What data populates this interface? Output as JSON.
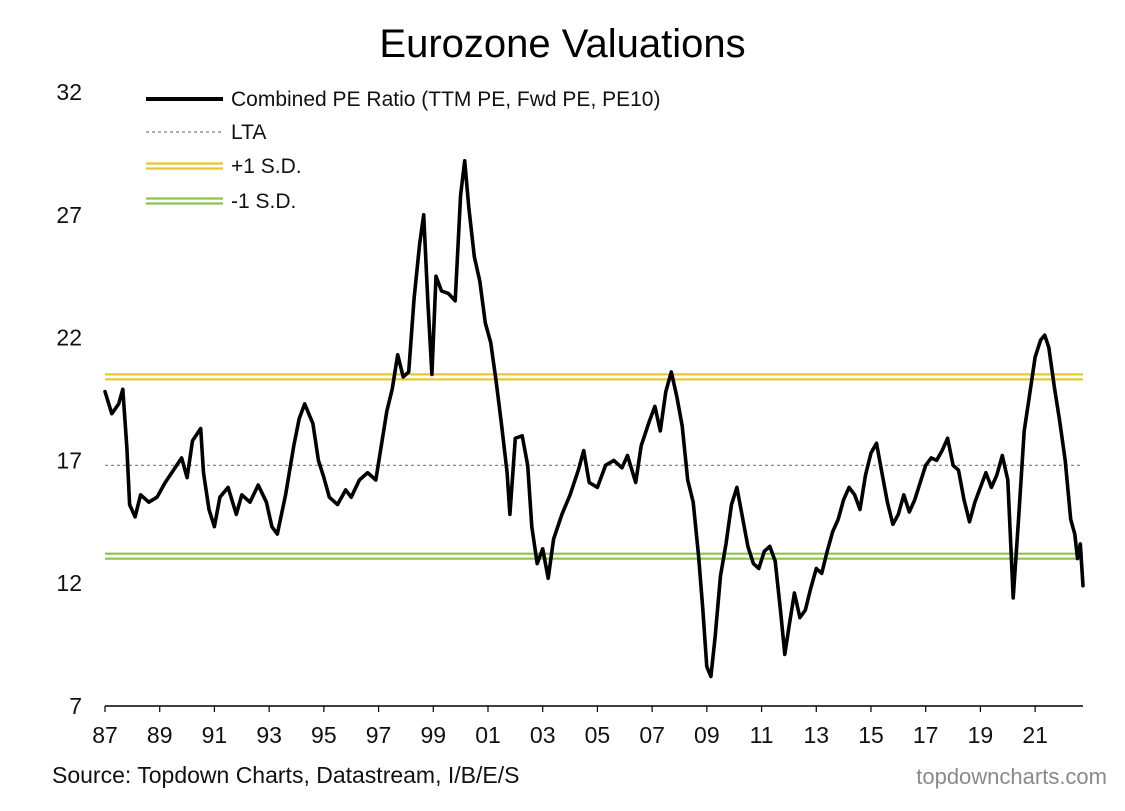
{
  "chart_data": {
    "type": "line",
    "title": "Eurozone Valuations",
    "xlabel": "",
    "ylabel": "",
    "ylim": [
      7,
      32
    ],
    "yticks": [
      7,
      12,
      17,
      22,
      27,
      32
    ],
    "xlim": [
      1987,
      2022.75
    ],
    "xticks": [
      "87",
      "89",
      "91",
      "93",
      "95",
      "97",
      "99",
      "01",
      "03",
      "05",
      "07",
      "09",
      "11",
      "13",
      "15",
      "17",
      "19",
      "21"
    ],
    "grid": false,
    "legend_position": "top-left",
    "legend": [
      {
        "label": "Combined PE Ratio (TTM PE, Fwd PE, PE10)",
        "style": "solid-black-thick"
      },
      {
        "label": "LTA",
        "style": "dashed-gray"
      },
      {
        "label": "+1 S.D.",
        "style": "double-yellow"
      },
      {
        "label": "-1 S.D.",
        "style": "double-green"
      }
    ],
    "reference_lines": {
      "LTA": 16.8,
      "plus_1_sd": 20.4,
      "minus_1_sd": 13.1
    },
    "series": [
      {
        "name": "Combined PE Ratio (TTM PE, Fwd PE, PE10)",
        "points": [
          [
            1987.0,
            19.8
          ],
          [
            1987.25,
            18.9
          ],
          [
            1987.5,
            19.3
          ],
          [
            1987.65,
            19.9
          ],
          [
            1987.8,
            17.5
          ],
          [
            1987.9,
            15.2
          ],
          [
            1988.1,
            14.7
          ],
          [
            1988.3,
            15.6
          ],
          [
            1988.6,
            15.3
          ],
          [
            1988.9,
            15.5
          ],
          [
            1989.2,
            16.1
          ],
          [
            1989.5,
            16.6
          ],
          [
            1989.8,
            17.1
          ],
          [
            1990.0,
            16.3
          ],
          [
            1990.2,
            17.8
          ],
          [
            1990.5,
            18.3
          ],
          [
            1990.6,
            16.5
          ],
          [
            1990.8,
            15.0
          ],
          [
            1991.0,
            14.3
          ],
          [
            1991.2,
            15.5
          ],
          [
            1991.5,
            15.9
          ],
          [
            1991.8,
            14.8
          ],
          [
            1992.0,
            15.6
          ],
          [
            1992.3,
            15.3
          ],
          [
            1992.6,
            16.0
          ],
          [
            1992.9,
            15.3
          ],
          [
            1993.1,
            14.3
          ],
          [
            1993.3,
            14.0
          ],
          [
            1993.6,
            15.6
          ],
          [
            1993.9,
            17.6
          ],
          [
            1994.1,
            18.7
          ],
          [
            1994.3,
            19.3
          ],
          [
            1994.6,
            18.5
          ],
          [
            1994.8,
            17.0
          ],
          [
            1995.0,
            16.3
          ],
          [
            1995.2,
            15.5
          ],
          [
            1995.5,
            15.2
          ],
          [
            1995.8,
            15.8
          ],
          [
            1996.0,
            15.5
          ],
          [
            1996.3,
            16.2
          ],
          [
            1996.6,
            16.5
          ],
          [
            1996.9,
            16.2
          ],
          [
            1997.1,
            17.6
          ],
          [
            1997.3,
            19.0
          ],
          [
            1997.5,
            19.9
          ],
          [
            1997.7,
            21.3
          ],
          [
            1997.9,
            20.4
          ],
          [
            1998.1,
            20.6
          ],
          [
            1998.3,
            23.6
          ],
          [
            1998.5,
            25.8
          ],
          [
            1998.65,
            27.0
          ],
          [
            1998.8,
            23.5
          ],
          [
            1998.95,
            20.5
          ],
          [
            1999.1,
            24.5
          ],
          [
            1999.3,
            23.9
          ],
          [
            1999.55,
            23.8
          ],
          [
            1999.8,
            23.5
          ],
          [
            2000.0,
            27.8
          ],
          [
            2000.15,
            29.2
          ],
          [
            2000.3,
            27.3
          ],
          [
            2000.5,
            25.3
          ],
          [
            2000.7,
            24.3
          ],
          [
            2000.9,
            22.6
          ],
          [
            2001.1,
            21.8
          ],
          [
            2001.3,
            20.2
          ],
          [
            2001.5,
            18.4
          ],
          [
            2001.7,
            16.5
          ],
          [
            2001.8,
            14.8
          ],
          [
            2002.0,
            17.9
          ],
          [
            2002.25,
            18.0
          ],
          [
            2002.45,
            16.8
          ],
          [
            2002.6,
            14.3
          ],
          [
            2002.8,
            12.8
          ],
          [
            2003.0,
            13.4
          ],
          [
            2003.2,
            12.2
          ],
          [
            2003.4,
            13.8
          ],
          [
            2003.7,
            14.8
          ],
          [
            2004.0,
            15.6
          ],
          [
            2004.3,
            16.6
          ],
          [
            2004.5,
            17.4
          ],
          [
            2004.7,
            16.1
          ],
          [
            2005.0,
            15.9
          ],
          [
            2005.3,
            16.8
          ],
          [
            2005.6,
            17.0
          ],
          [
            2005.9,
            16.7
          ],
          [
            2006.1,
            17.2
          ],
          [
            2006.4,
            16.1
          ],
          [
            2006.6,
            17.6
          ],
          [
            2006.9,
            18.6
          ],
          [
            2007.1,
            19.2
          ],
          [
            2007.3,
            18.2
          ],
          [
            2007.5,
            19.8
          ],
          [
            2007.7,
            20.6
          ],
          [
            2007.9,
            19.6
          ],
          [
            2008.1,
            18.4
          ],
          [
            2008.3,
            16.2
          ],
          [
            2008.5,
            15.3
          ],
          [
            2008.7,
            13.1
          ],
          [
            2008.85,
            11.0
          ],
          [
            2009.0,
            8.6
          ],
          [
            2009.15,
            8.2
          ],
          [
            2009.3,
            9.8
          ],
          [
            2009.5,
            12.3
          ],
          [
            2009.7,
            13.6
          ],
          [
            2009.9,
            15.2
          ],
          [
            2010.1,
            15.9
          ],
          [
            2010.3,
            14.7
          ],
          [
            2010.5,
            13.5
          ],
          [
            2010.7,
            12.8
          ],
          [
            2010.9,
            12.6
          ],
          [
            2011.1,
            13.3
          ],
          [
            2011.3,
            13.5
          ],
          [
            2011.5,
            12.9
          ],
          [
            2011.7,
            10.8
          ],
          [
            2011.85,
            9.1
          ],
          [
            2012.0,
            10.2
          ],
          [
            2012.2,
            11.6
          ],
          [
            2012.4,
            10.6
          ],
          [
            2012.6,
            10.9
          ],
          [
            2012.8,
            11.8
          ],
          [
            2013.0,
            12.6
          ],
          [
            2013.2,
            12.4
          ],
          [
            2013.4,
            13.3
          ],
          [
            2013.6,
            14.1
          ],
          [
            2013.8,
            14.6
          ],
          [
            2014.0,
            15.4
          ],
          [
            2014.2,
            15.9
          ],
          [
            2014.4,
            15.6
          ],
          [
            2014.6,
            15.0
          ],
          [
            2014.8,
            16.4
          ],
          [
            2015.0,
            17.3
          ],
          [
            2015.2,
            17.7
          ],
          [
            2015.4,
            16.5
          ],
          [
            2015.6,
            15.3
          ],
          [
            2015.8,
            14.4
          ],
          [
            2016.0,
            14.8
          ],
          [
            2016.2,
            15.6
          ],
          [
            2016.4,
            14.9
          ],
          [
            2016.6,
            15.4
          ],
          [
            2016.8,
            16.1
          ],
          [
            2017.0,
            16.8
          ],
          [
            2017.2,
            17.1
          ],
          [
            2017.4,
            17.0
          ],
          [
            2017.6,
            17.4
          ],
          [
            2017.8,
            17.9
          ],
          [
            2018.0,
            16.8
          ],
          [
            2018.2,
            16.6
          ],
          [
            2018.4,
            15.4
          ],
          [
            2018.6,
            14.5
          ],
          [
            2018.8,
            15.3
          ],
          [
            2019.0,
            15.9
          ],
          [
            2019.2,
            16.5
          ],
          [
            2019.4,
            15.9
          ],
          [
            2019.6,
            16.4
          ],
          [
            2019.8,
            17.2
          ],
          [
            2020.0,
            16.2
          ],
          [
            2020.2,
            11.4
          ],
          [
            2020.4,
            14.7
          ],
          [
            2020.6,
            18.2
          ],
          [
            2020.8,
            19.7
          ],
          [
            2021.0,
            21.2
          ],
          [
            2021.2,
            21.9
          ],
          [
            2021.35,
            22.1
          ],
          [
            2021.5,
            21.6
          ],
          [
            2021.7,
            20.0
          ],
          [
            2021.9,
            18.6
          ],
          [
            2022.1,
            17.0
          ],
          [
            2022.3,
            14.6
          ],
          [
            2022.45,
            14.0
          ],
          [
            2022.55,
            13.0
          ],
          [
            2022.65,
            13.6
          ],
          [
            2022.75,
            11.9
          ]
        ]
      }
    ]
  },
  "footer": {
    "source": "Source: Topdown Charts, Datastream, I/B/E/S",
    "watermark": "topdowncharts.com"
  },
  "colors": {
    "series": "#000000",
    "lta": "#7f7f7f",
    "plus_sd": "#e8c82c",
    "minus_sd": "#8bc34a"
  }
}
